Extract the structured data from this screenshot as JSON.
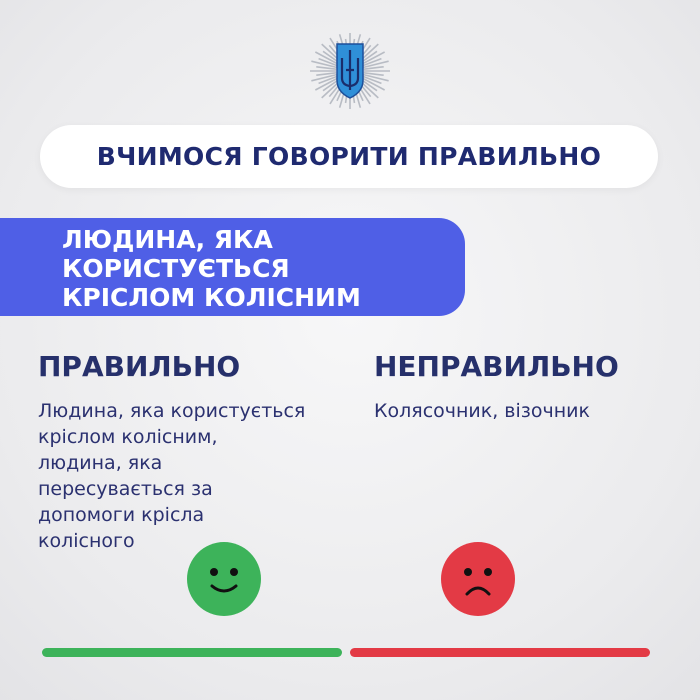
{
  "header": {
    "emblem": "ukraine-trident-police-emblem",
    "title": "ВЧИМОСЯ ГОВОРИТИ ПРАВИЛЬНО"
  },
  "topic": {
    "lines": [
      "ЛЮДИНА, ЯКА",
      "КОРИСТУЄТЬСЯ",
      "КРІСЛОМ КОЛІСНИМ"
    ]
  },
  "correct": {
    "heading": "ПРАВИЛЬНО",
    "lines": [
      "Людина, яка користується",
      "кріслом колісним,",
      "людина, яка",
      "пересувається за",
      "допомоги крісла",
      "колісного"
    ],
    "icon": "smiley-happy-icon",
    "color": "#3db35a"
  },
  "incorrect": {
    "heading": "НЕПРАВИЛЬНО",
    "lines": [
      "Колясочник, візочник"
    ],
    "icon": "smiley-sad-icon",
    "color": "#e33a45"
  },
  "colors": {
    "accent": "#4f5fe6",
    "navy": "#232c6a"
  }
}
